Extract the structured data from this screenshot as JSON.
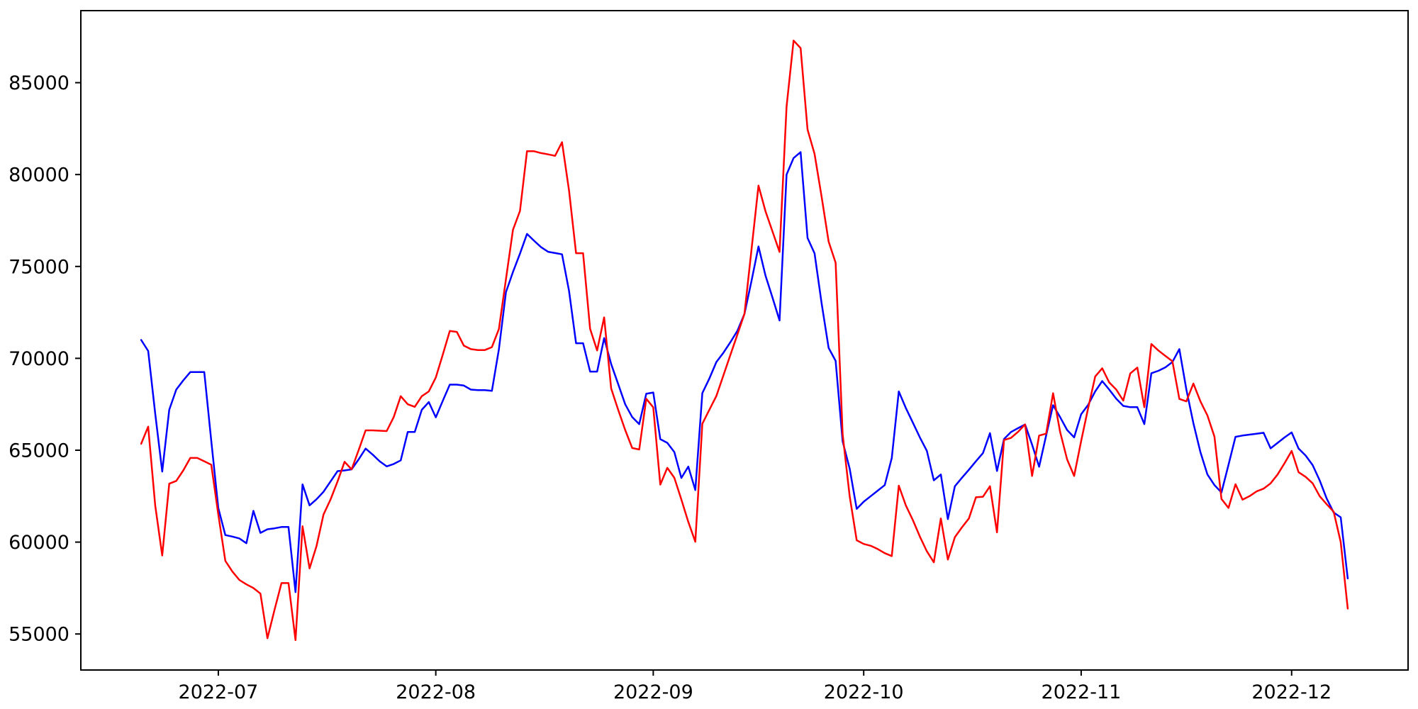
{
  "chart_data": {
    "type": "line",
    "title": "",
    "xlabel": "",
    "ylabel": "",
    "x_type": "date",
    "grid": false,
    "legend": "none",
    "background": "#ffffff",
    "axis_color": "#000000",
    "ylim": [
      53040,
      88920
    ],
    "yticks": [
      55000,
      60000,
      65000,
      70000,
      75000,
      80000,
      85000
    ],
    "xticks": [
      {
        "label": "2022-07",
        "date": "2022-07-01"
      },
      {
        "label": "2022-08",
        "date": "2022-08-01"
      },
      {
        "label": "2022-09",
        "date": "2022-09-01"
      },
      {
        "label": "2022-10",
        "date": "2022-10-01"
      },
      {
        "label": "2022-11",
        "date": "2022-11-01"
      },
      {
        "label": "2022-12",
        "date": "2022-12-01"
      }
    ],
    "x": [
      "2022-06-20",
      "2022-06-21",
      "2022-06-22",
      "2022-06-23",
      "2022-06-24",
      "2022-06-25",
      "2022-06-26",
      "2022-06-27",
      "2022-06-28",
      "2022-06-29",
      "2022-06-30",
      "2022-07-01",
      "2022-07-02",
      "2022-07-03",
      "2022-07-04",
      "2022-07-05",
      "2022-07-06",
      "2022-07-07",
      "2022-07-08",
      "2022-07-09",
      "2022-07-10",
      "2022-07-11",
      "2022-07-12",
      "2022-07-13",
      "2022-07-14",
      "2022-07-15",
      "2022-07-16",
      "2022-07-17",
      "2022-07-18",
      "2022-07-19",
      "2022-07-20",
      "2022-07-21",
      "2022-07-22",
      "2022-07-23",
      "2022-07-24",
      "2022-07-25",
      "2022-07-26",
      "2022-07-27",
      "2022-07-28",
      "2022-07-29",
      "2022-07-30",
      "2022-07-31",
      "2022-08-01",
      "2022-08-02",
      "2022-08-03",
      "2022-08-04",
      "2022-08-05",
      "2022-08-06",
      "2022-08-07",
      "2022-08-08",
      "2022-08-09",
      "2022-08-10",
      "2022-08-11",
      "2022-08-12",
      "2022-08-13",
      "2022-08-14",
      "2022-08-15",
      "2022-08-16",
      "2022-08-17",
      "2022-08-18",
      "2022-08-19",
      "2022-08-20",
      "2022-08-21",
      "2022-08-22",
      "2022-08-23",
      "2022-08-24",
      "2022-08-25",
      "2022-08-26",
      "2022-08-27",
      "2022-08-28",
      "2022-08-29",
      "2022-08-30",
      "2022-08-31",
      "2022-09-01",
      "2022-09-02",
      "2022-09-03",
      "2022-09-04",
      "2022-09-05",
      "2022-09-06",
      "2022-09-07",
      "2022-09-08",
      "2022-09-09",
      "2022-09-10",
      "2022-09-11",
      "2022-09-12",
      "2022-09-13",
      "2022-09-14",
      "2022-09-15",
      "2022-09-16",
      "2022-09-17",
      "2022-09-18",
      "2022-09-19",
      "2022-09-20",
      "2022-09-21",
      "2022-09-22",
      "2022-09-23",
      "2022-09-24",
      "2022-09-25",
      "2022-09-26",
      "2022-09-27",
      "2022-09-28",
      "2022-09-29",
      "2022-09-30",
      "2022-10-01",
      "2022-10-02",
      "2022-10-03",
      "2022-10-04",
      "2022-10-05",
      "2022-10-06",
      "2022-10-07",
      "2022-10-08",
      "2022-10-09",
      "2022-10-10",
      "2022-10-11",
      "2022-10-12",
      "2022-10-13",
      "2022-10-14",
      "2022-10-15",
      "2022-10-16",
      "2022-10-17",
      "2022-10-18",
      "2022-10-19",
      "2022-10-20",
      "2022-10-21",
      "2022-10-22",
      "2022-10-23",
      "2022-10-24",
      "2022-10-25",
      "2022-10-26",
      "2022-10-27",
      "2022-10-28",
      "2022-10-29",
      "2022-10-30",
      "2022-10-31",
      "2022-11-01",
      "2022-11-02",
      "2022-11-03",
      "2022-11-04",
      "2022-11-05",
      "2022-11-06",
      "2022-11-07",
      "2022-11-08",
      "2022-11-09",
      "2022-11-10",
      "2022-11-11",
      "2022-11-12",
      "2022-11-13",
      "2022-11-14",
      "2022-11-15",
      "2022-11-16",
      "2022-11-17",
      "2022-11-18",
      "2022-11-19",
      "2022-11-20",
      "2022-11-21",
      "2022-11-22",
      "2022-11-23",
      "2022-11-24",
      "2022-11-25",
      "2022-11-26",
      "2022-11-27",
      "2022-11-28",
      "2022-11-29",
      "2022-11-30",
      "2022-12-01",
      "2022-12-02",
      "2022-12-03",
      "2022-12-04",
      "2022-12-05",
      "2022-12-06",
      "2022-12-07",
      "2022-12-08",
      "2022-12-09"
    ],
    "series": [
      {
        "name": "series-blue",
        "color": "#0000ff",
        "values": [
          71000,
          70400,
          67000,
          63840,
          67200,
          68300,
          68800,
          69250,
          69250,
          69250,
          65500,
          61850,
          60380,
          60300,
          60200,
          59940,
          61700,
          60500,
          60700,
          60750,
          60820,
          60820,
          57280,
          63140,
          62000,
          62330,
          62740,
          63300,
          63860,
          63900,
          63960,
          64500,
          65090,
          64760,
          64400,
          64120,
          64250,
          64450,
          65990,
          65990,
          67200,
          67620,
          66790,
          67690,
          68570,
          68570,
          68520,
          68300,
          68270,
          68270,
          68230,
          70500,
          73600,
          74700,
          75700,
          76770,
          76400,
          76050,
          75800,
          75730,
          75660,
          73670,
          70820,
          70820,
          69280,
          69280,
          71100,
          69690,
          68600,
          67500,
          66800,
          66420,
          68070,
          68140,
          65600,
          65400,
          64900,
          63490,
          64110,
          62830,
          68110,
          68900,
          69800,
          70300,
          70880,
          71500,
          72420,
          74200,
          76090,
          74500,
          73300,
          72060,
          80000,
          80900,
          81220,
          76550,
          75710,
          73000,
          70570,
          69860,
          65480,
          64000,
          61810,
          62200,
          62500,
          62800,
          63100,
          64580,
          68200,
          67300,
          66500,
          65700,
          64960,
          63360,
          63680,
          61250,
          63040,
          63500,
          63940,
          64400,
          64840,
          65930,
          63870,
          65610,
          65990,
          66200,
          66400,
          65300,
          64100,
          65800,
          67450,
          66800,
          66100,
          65700,
          66960,
          67470,
          68200,
          68760,
          68300,
          67800,
          67410,
          67340,
          67340,
          66420,
          69190,
          69320,
          69510,
          69800,
          70500,
          68300,
          66470,
          64900,
          63680,
          63100,
          62700,
          64200,
          65730,
          65800,
          65850,
          65900,
          65950,
          65100,
          65400,
          65700,
          65970,
          65090,
          64710,
          64190,
          63360,
          62370,
          61610,
          61350,
          58020
        ]
      },
      {
        "name": "series-red",
        "color": "#ff0000",
        "values": [
          65350,
          66280,
          62000,
          59270,
          63180,
          63330,
          63900,
          64580,
          64580,
          64400,
          64210,
          61500,
          58980,
          58400,
          57940,
          57700,
          57500,
          57200,
          54770,
          56300,
          57770,
          57770,
          54670,
          60860,
          58570,
          59780,
          61500,
          62320,
          63300,
          64370,
          63960,
          65000,
          66080,
          66080,
          66060,
          66040,
          66800,
          67940,
          67500,
          67360,
          67940,
          68200,
          68960,
          70200,
          71490,
          71440,
          70690,
          70500,
          70450,
          70450,
          70610,
          71600,
          74300,
          76990,
          78020,
          81270,
          81270,
          81170,
          81100,
          81020,
          81760,
          79130,
          75720,
          75720,
          71610,
          70430,
          72230,
          68360,
          67200,
          66100,
          65120,
          65040,
          67800,
          67330,
          63130,
          64040,
          63500,
          62320,
          61100,
          60020,
          66440,
          67200,
          67950,
          69070,
          70190,
          71300,
          72420,
          75900,
          79400,
          78000,
          76900,
          75790,
          83700,
          87290,
          86880,
          82450,
          81120,
          78800,
          76360,
          75200,
          65860,
          62500,
          60100,
          59900,
          59800,
          59620,
          59400,
          59240,
          63070,
          62000,
          61200,
          60300,
          59500,
          58900,
          61290,
          59050,
          60270,
          60800,
          61290,
          62440,
          62470,
          63040,
          60530,
          65550,
          65670,
          66000,
          66400,
          63600,
          65800,
          65900,
          68100,
          66000,
          64500,
          63600,
          65500,
          67300,
          69010,
          69460,
          68690,
          68300,
          67700,
          69180,
          69500,
          67340,
          70780,
          70430,
          70130,
          69840,
          67790,
          67660,
          68630,
          67660,
          66890,
          65740,
          62350,
          61860,
          63150,
          62310,
          62500,
          62760,
          62910,
          63200,
          63680,
          64300,
          64960,
          63800,
          63550,
          63200,
          62500,
          62060,
          61650,
          60000,
          56380
        ]
      }
    ]
  }
}
